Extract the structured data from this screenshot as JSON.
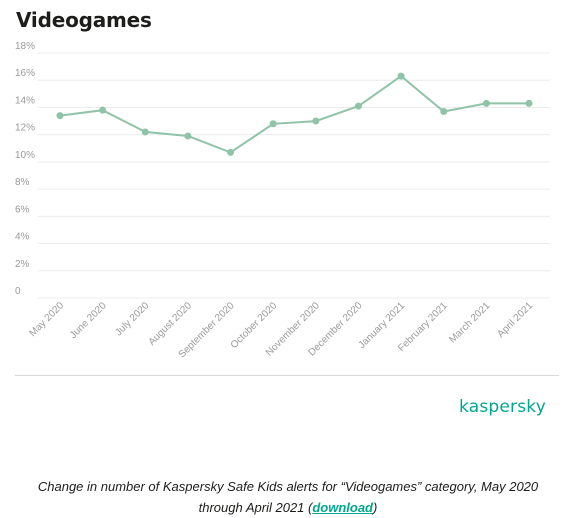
{
  "title": "Videogames",
  "chart_data": {
    "type": "line",
    "categories": [
      "May 2020",
      "June 2020",
      "July 2020",
      "August 2020",
      "September 2020",
      "October 2020",
      "November 2020",
      "December 2020",
      "January 2021",
      "February 2021",
      "March 2021",
      "April 2021"
    ],
    "values": [
      13.4,
      13.8,
      12.2,
      11.9,
      10.7,
      12.8,
      13.0,
      14.1,
      16.3,
      13.7,
      14.3,
      14.3
    ],
    "ytick_labels": [
      "0",
      "2%",
      "4%",
      "6%",
      "8%",
      "10%",
      "12%",
      "14%",
      "16%",
      "18%"
    ],
    "ylim": [
      0,
      18
    ],
    "ystep": 2,
    "grid": true,
    "line_color": "#8fc4a8"
  },
  "brand": "kaspersky",
  "caption": {
    "text": "Change in number of Kaspersky Safe Kids alerts for “Videogames” category, May 2020 through April 2021 (",
    "link": "download",
    "end": ")"
  },
  "colors": {
    "accent": "#00a88e"
  }
}
